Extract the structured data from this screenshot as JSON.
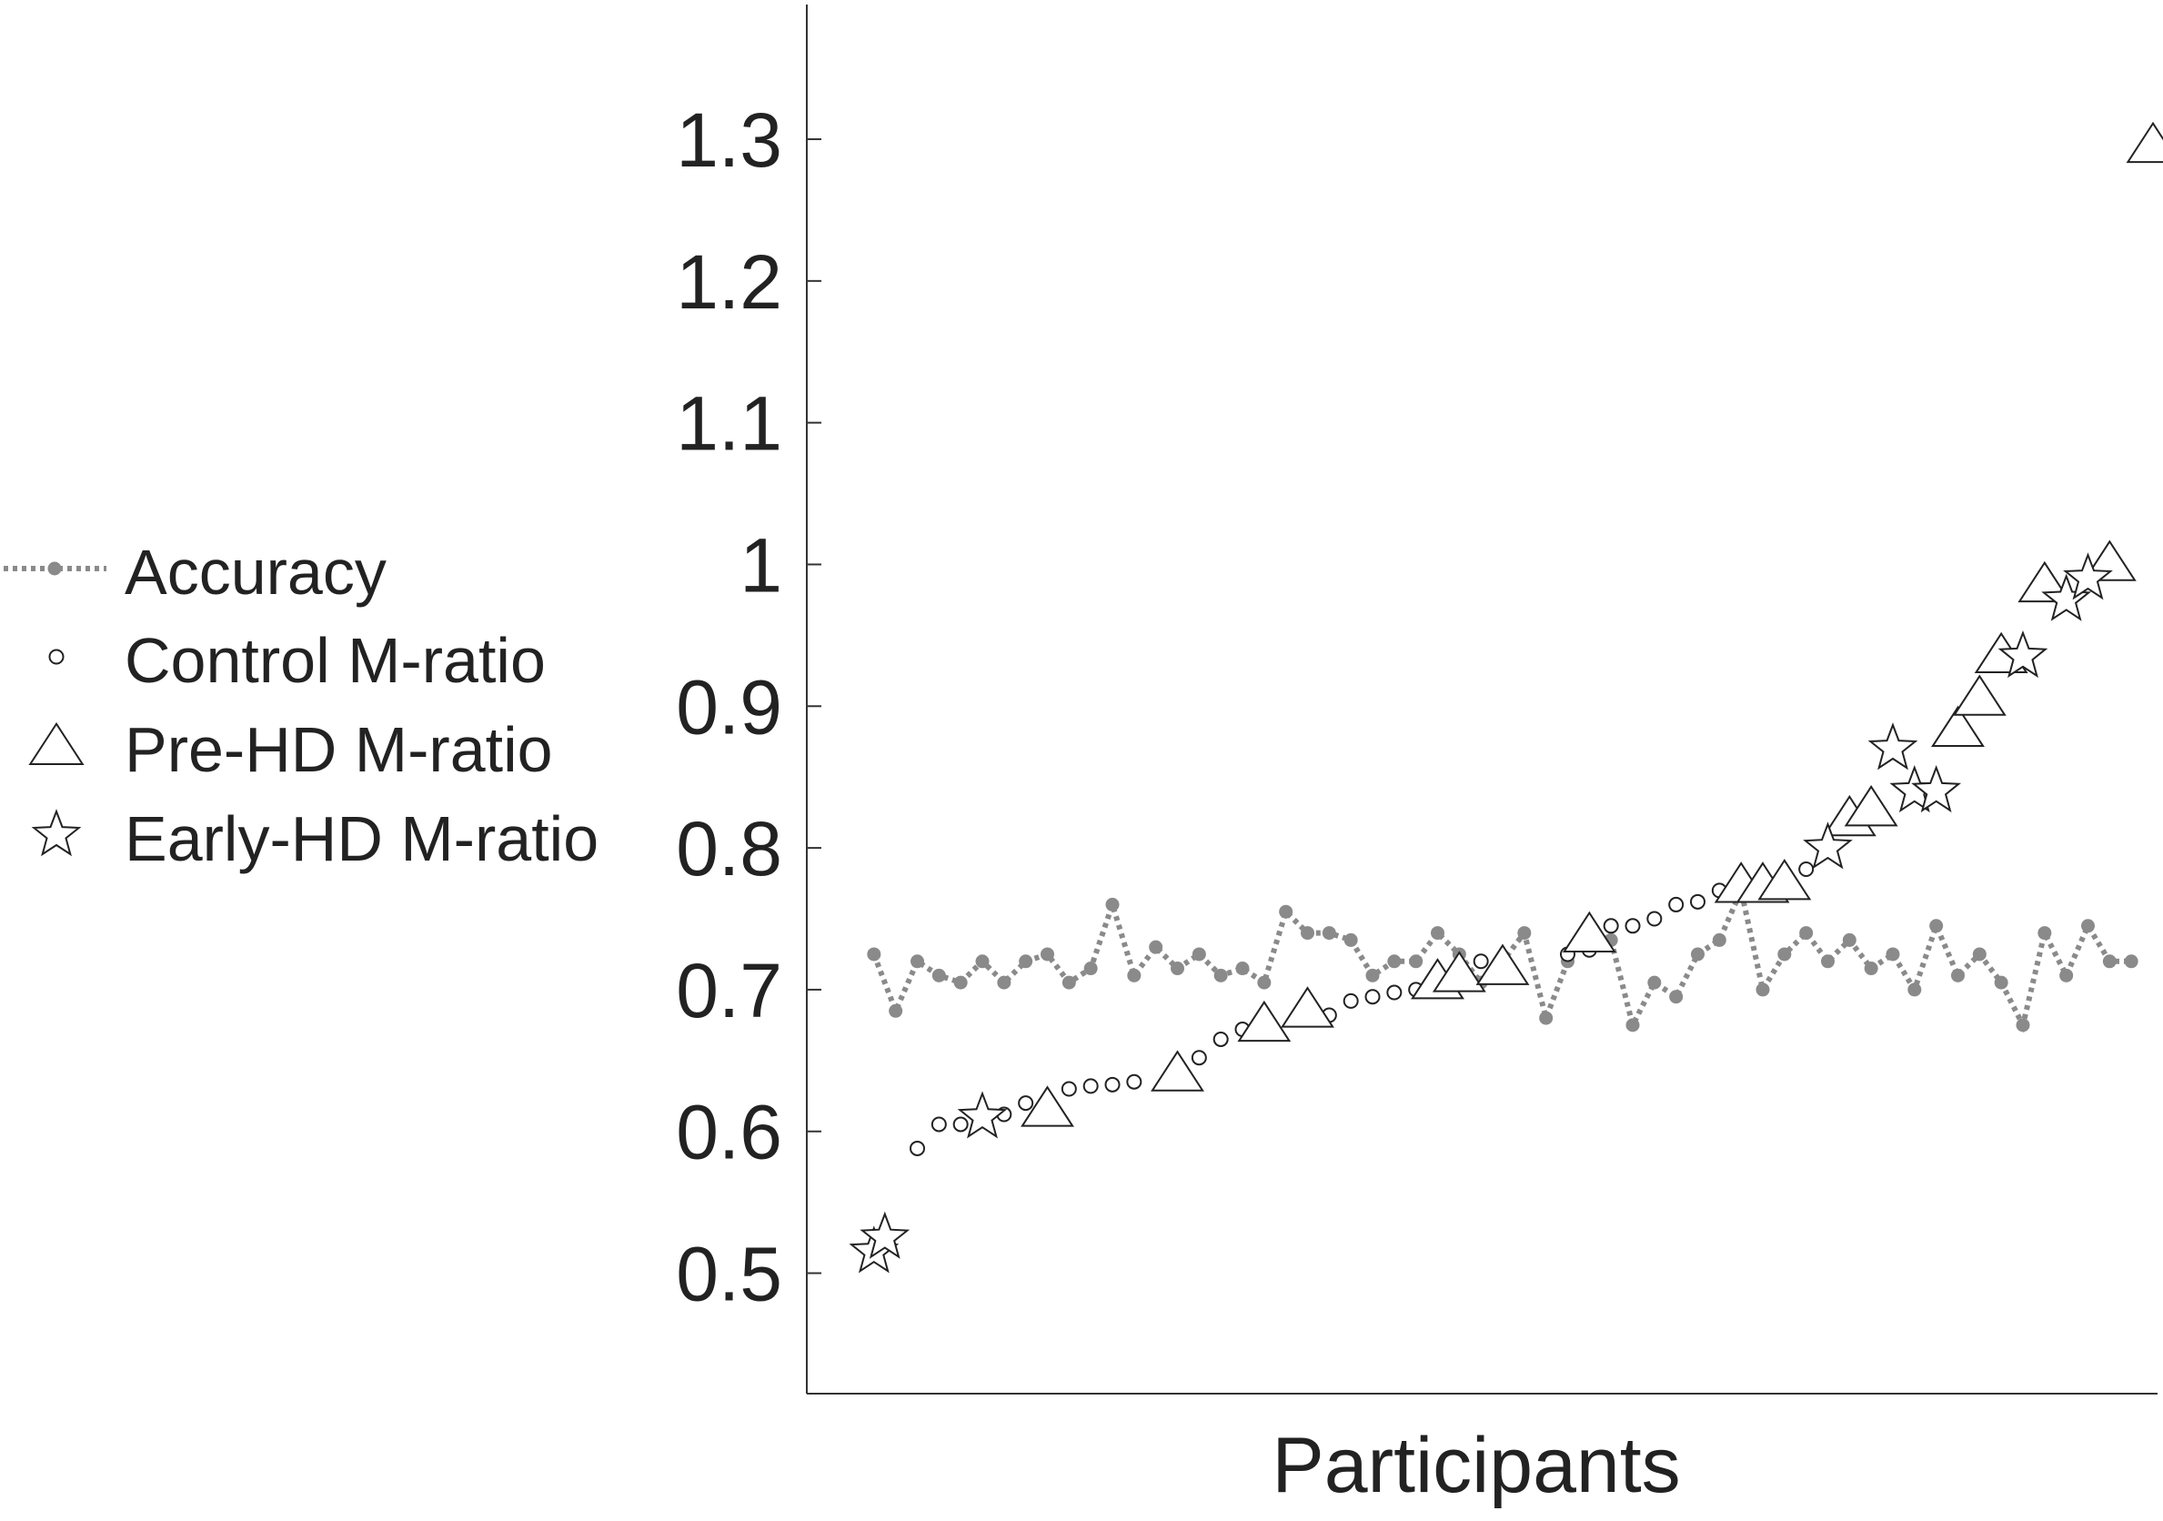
{
  "chart_data": {
    "type": "scatter",
    "xlabel": "Participants",
    "ylabel": "",
    "ylim": [
      0.415,
      1.395
    ],
    "yticks": [
      0.5,
      0.6,
      0.7,
      0.8,
      0.9,
      1,
      1.1,
      1.2,
      1.3
    ],
    "ytick_labels": [
      "0.5",
      "0.6",
      "0.7",
      "0.8",
      "0.9",
      "1",
      "1.1",
      "1.2",
      "1.3"
    ],
    "xlim": [
      0,
      60
    ],
    "grid": false,
    "legend_position": "left",
    "colors": {
      "accuracy": "#8a8a8a",
      "markers": "#222222",
      "axis": "#333333"
    },
    "series": [
      {
        "name": "Accuracy",
        "marker": "dot",
        "line": "dotted",
        "x": [
          1,
          2,
          3,
          4,
          5,
          6,
          7,
          8,
          9,
          10,
          11,
          12,
          13,
          14,
          15,
          16,
          17,
          18,
          19,
          20,
          21,
          22,
          23,
          24,
          25,
          26,
          27,
          28,
          29,
          30,
          31,
          32,
          33,
          34,
          35,
          36,
          37,
          38,
          39,
          40,
          41,
          42,
          43,
          44,
          45,
          46,
          47,
          48,
          49,
          50,
          51,
          52,
          53,
          54,
          55,
          56,
          57,
          58,
          59
        ],
        "values": [
          0.725,
          0.685,
          0.72,
          0.71,
          0.705,
          0.72,
          0.705,
          0.72,
          0.725,
          0.705,
          0.715,
          0.76,
          0.71,
          0.73,
          0.715,
          0.725,
          0.71,
          0.715,
          0.705,
          0.755,
          0.74,
          0.74,
          0.735,
          0.71,
          0.72,
          0.72,
          0.74,
          0.725,
          0.705,
          0.72,
          0.74,
          0.68,
          0.72,
          0.74,
          0.735,
          0.675,
          0.705,
          0.695,
          0.725,
          0.735,
          0.77,
          0.7,
          0.725,
          0.74,
          0.72,
          0.735,
          0.715,
          0.725,
          0.7,
          0.745,
          0.71,
          0.725,
          0.705,
          0.675,
          0.74,
          0.71,
          0.745,
          0.72,
          0.72
        ]
      },
      {
        "name": "Control M-ratio",
        "marker": "circle",
        "x": [
          3,
          4,
          5,
          7,
          8,
          9,
          10,
          11,
          12,
          13,
          16,
          17,
          18,
          19,
          22,
          23,
          24,
          25,
          26,
          29,
          33,
          34,
          35,
          36,
          37,
          38,
          39,
          40,
          44
        ],
        "values": [
          0.588,
          0.605,
          0.605,
          0.612,
          0.62,
          0.622,
          0.63,
          0.632,
          0.633,
          0.635,
          0.652,
          0.665,
          0.672,
          0.68,
          0.682,
          0.692,
          0.695,
          0.698,
          0.7,
          0.72,
          0.725,
          0.728,
          0.745,
          0.745,
          0.75,
          0.76,
          0.762,
          0.77,
          0.785
        ]
      },
      {
        "name": "Pre-HD M-ratio",
        "marker": "triangle",
        "x": [
          9,
          15,
          19,
          21,
          27,
          28,
          30,
          34,
          41,
          42,
          43,
          46,
          47,
          51,
          52,
          53,
          55,
          58,
          60
        ],
        "values": [
          0.615,
          0.64,
          0.675,
          0.685,
          0.705,
          0.71,
          0.715,
          0.738,
          0.773,
          0.773,
          0.775,
          0.82,
          0.827,
          0.883,
          0.905,
          0.935,
          0.985,
          1.0,
          1.295
        ]
      },
      {
        "name": "Early-HD M-ratio",
        "marker": "star",
        "x": [
          1,
          1.5,
          6,
          45,
          48,
          49,
          50,
          54,
          56,
          57
        ],
        "values": [
          0.515,
          0.525,
          0.61,
          0.8,
          0.87,
          0.84,
          0.84,
          0.935,
          0.975,
          0.99
        ]
      }
    ]
  }
}
